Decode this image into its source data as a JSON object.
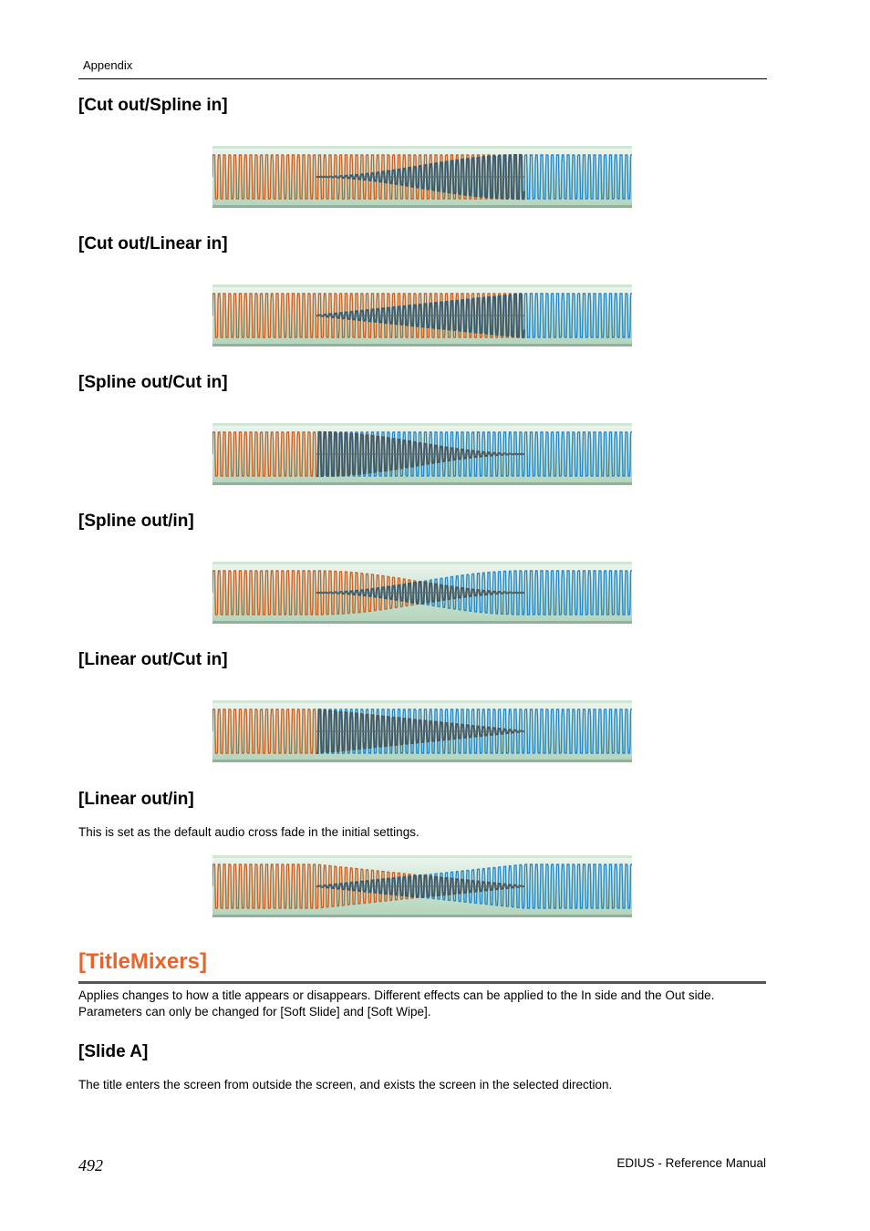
{
  "header": {
    "running_title": "Appendix"
  },
  "crossfades": [
    {
      "title": "[Cut out/Spline in]",
      "out_curve": "cut",
      "in_curve": "spline",
      "waveform": "cut-out-spline-in-waveform"
    },
    {
      "title": "[Cut out/Linear in]",
      "out_curve": "cut",
      "in_curve": "linear",
      "waveform": "cut-out-linear-in-waveform"
    },
    {
      "title": "[Spline out/Cut in]",
      "out_curve": "spline",
      "in_curve": "cut",
      "waveform": "spline-out-cut-in-waveform"
    },
    {
      "title": "[Spline out/in]",
      "out_curve": "spline",
      "in_curve": "spline",
      "waveform": "spline-out-in-waveform"
    },
    {
      "title": "[Linear out/Cut in]",
      "out_curve": "linear",
      "in_curve": "cut",
      "waveform": "linear-out-cut-in-waveform"
    },
    {
      "title": "[Linear out/in]",
      "out_curve": "linear",
      "in_curve": "linear",
      "waveform": "linear-out-in-waveform",
      "description": "This is set as the default audio cross fade in the initial settings."
    }
  ],
  "titlemixers": {
    "title": "[TitleMixers]",
    "description_line1": "Applies changes to how a title appears or disappears. Different effects can be applied to the In side and the Out side.",
    "description_line2": "Parameters can only be changed for [Soft Slide] and [Soft Wipe].",
    "slide_a": {
      "title": "[Slide A]",
      "description": "The title enters the screen from outside the screen, and exists the screen in the selected direction."
    }
  },
  "footer": {
    "page_number": "492",
    "manual_title": "EDIUS - Reference Manual"
  },
  "colors": {
    "section_title": "#e8642a",
    "out_wave": "#c8642a",
    "in_wave": "#2a88c8",
    "track_bg": "#c4e0cc"
  }
}
